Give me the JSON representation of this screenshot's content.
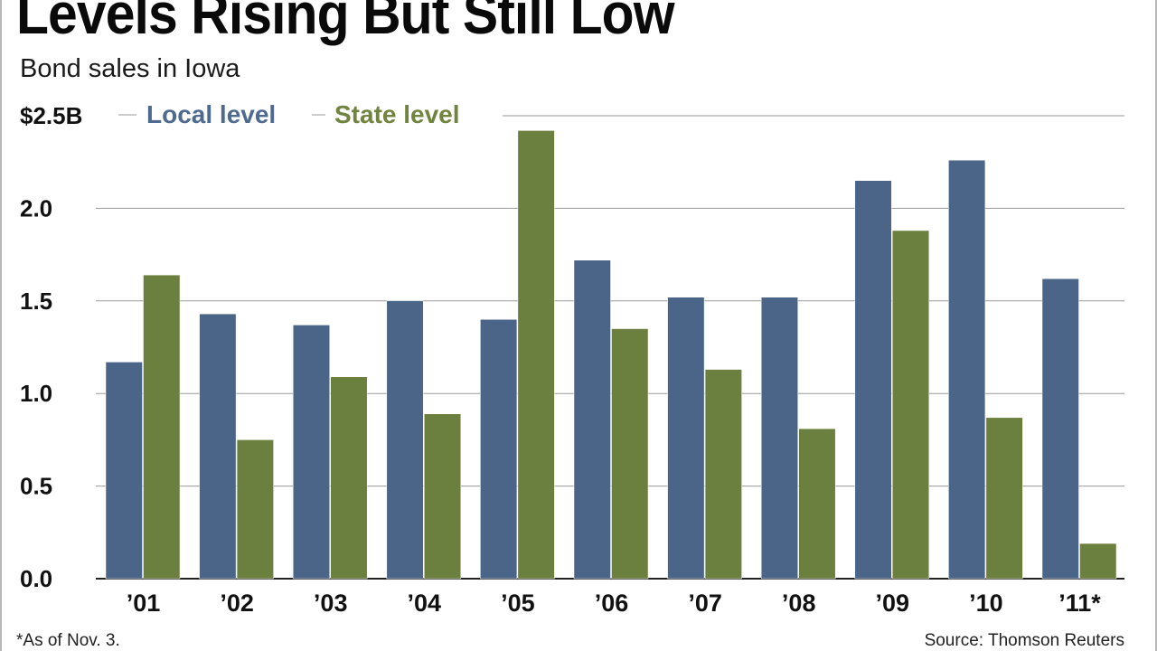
{
  "header": {
    "title": "Levels Rising But Still Low",
    "subtitle": "Bond sales in Iowa"
  },
  "footer": {
    "footnote": "*As of Nov. 3.",
    "source": "Source: Thomson Reuters"
  },
  "colors": {
    "local": "#4a6588",
    "state": "#6b7f3e",
    "grid": "#9a9a9a",
    "legend_local_text": "#4e6a8f",
    "legend_state_text": "#70843f"
  },
  "chart_data": {
    "type": "bar",
    "title": "Levels Rising But Still Low",
    "subtitle": "Bond sales in Iowa",
    "xlabel": "",
    "ylabel": "",
    "ylim": [
      0,
      2.5
    ],
    "y_ticks": [
      0.0,
      0.5,
      1.0,
      1.5,
      2.0,
      2.5
    ],
    "y_tick_labels": [
      "0.0",
      "0.5",
      "1.0",
      "1.5",
      "2.0",
      "$2.5B"
    ],
    "grid": true,
    "legend_position": "top-left",
    "categories": [
      "’01",
      "’02",
      "’03",
      "’04",
      "’05",
      "’06",
      "’07",
      "’08",
      "’09",
      "’10",
      "’11*"
    ],
    "series": [
      {
        "name": "Local level",
        "values": [
          1.17,
          1.43,
          1.37,
          1.5,
          1.4,
          1.72,
          1.52,
          1.52,
          2.15,
          2.26,
          1.62
        ]
      },
      {
        "name": "State level",
        "values": [
          1.64,
          0.75,
          1.09,
          0.89,
          2.42,
          1.35,
          1.13,
          0.81,
          1.88,
          0.87,
          0.19
        ]
      }
    ]
  }
}
